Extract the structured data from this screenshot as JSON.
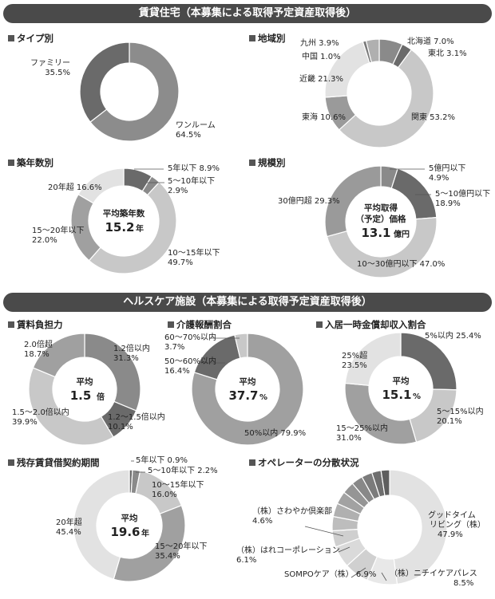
{
  "sections": {
    "residential_title": "賃貸住宅（本募集による取得予定資産取得後）",
    "healthcare_title": "ヘルスケア施設（本募集による取得予定資産取得後）"
  },
  "colors": {
    "dark": "#6a6a6a",
    "mid": "#a0a0a0",
    "light": "#c8c8c8",
    "pale": "#e2e2e2"
  },
  "chart_data": [
    {
      "id": "type",
      "type": "donut",
      "title": "タイプ別",
      "slices": [
        {
          "label": "ワンルーム",
          "value": "64.5%",
          "v": 64.5,
          "color": "#8c8c8c"
        },
        {
          "label": "ファミリー",
          "value": "35.5%",
          "v": 35.5,
          "color": "#6a6a6a"
        }
      ]
    },
    {
      "id": "region",
      "type": "donut",
      "title": "地域別",
      "slices": [
        {
          "label": "北海道",
          "value": "7.0%",
          "v": 7.0,
          "color": "#8a8a8a"
        },
        {
          "label": "東北",
          "value": "3.1%",
          "v": 3.1,
          "color": "#6a6a6a"
        },
        {
          "label": "関東",
          "value": "53.2%",
          "v": 53.2,
          "color": "#c8c8c8"
        },
        {
          "label": "東海",
          "value": "10.6%",
          "v": 10.6,
          "color": "#9a9a9a"
        },
        {
          "label": "近畿",
          "value": "21.3%",
          "v": 21.3,
          "color": "#e2e2e2"
        },
        {
          "label": "中国",
          "value": "1.0%",
          "v": 1.0,
          "color": "#7a7a7a"
        },
        {
          "label": "九州",
          "value": "3.9%",
          "v": 3.9,
          "color": "#b0b0b0"
        }
      ]
    },
    {
      "id": "age",
      "type": "donut",
      "title": "築年数別",
      "center": {
        "line1": "平均築年数",
        "value": "15.2",
        "unit": "年"
      },
      "slices": [
        {
          "label": "5年以下",
          "value": "8.9%",
          "v": 8.9,
          "color": "#6a6a6a"
        },
        {
          "label": "5～10年以下",
          "value": "2.9%",
          "v": 2.9,
          "color": "#8a8a8a"
        },
        {
          "label": "10～15年以下",
          "value": "49.7%",
          "v": 49.7,
          "color": "#c8c8c8"
        },
        {
          "label": "15～20年以下",
          "value": "22.0%",
          "v": 22.0,
          "color": "#a0a0a0"
        },
        {
          "label": "20年超",
          "value": "16.6%",
          "v": 16.6,
          "color": "#e2e2e2"
        }
      ]
    },
    {
      "id": "scale",
      "type": "donut",
      "title": "規模別",
      "center": {
        "line1": "平均取得",
        "line2": "（予定）価格",
        "value": "13.1",
        "unit": "億円"
      },
      "slices": [
        {
          "label": "5億円以下",
          "value": "4.9%",
          "v": 4.9,
          "color": "#8a8a8a"
        },
        {
          "label": "5～10億円以下",
          "value": "18.9%",
          "v": 18.9,
          "color": "#6a6a6a"
        },
        {
          "label": "10～30億円以下",
          "value": "47.0%",
          "v": 47.0,
          "color": "#c8c8c8"
        },
        {
          "label": "30億円超",
          "value": "29.3%",
          "v": 29.3,
          "color": "#9a9a9a"
        }
      ]
    },
    {
      "id": "rent",
      "type": "donut",
      "title": "賃料負担力",
      "center": {
        "line1": "平均",
        "value": "1.5",
        "unit": "倍"
      },
      "slices": [
        {
          "label": "1.2倍以内",
          "value": "31.3%",
          "v": 31.3,
          "color": "#8a8a8a"
        },
        {
          "label": "1.2～1.5倍以内",
          "value": "10.1%",
          "v": 10.1,
          "color": "#6a6a6a"
        },
        {
          "label": "1.5～2.0倍以内",
          "value": "39.9%",
          "v": 39.9,
          "color": "#c8c8c8"
        },
        {
          "label": "2.0倍超",
          "value": "18.7%",
          "v": 18.7,
          "color": "#a0a0a0"
        }
      ]
    },
    {
      "id": "care",
      "type": "donut",
      "title": "介護報酬割合",
      "center": {
        "line1": "平均",
        "value": "37.7",
        "unit": "%"
      },
      "slices": [
        {
          "label": "50%以内",
          "value": "79.9%",
          "v": 79.9,
          "color": "#a0a0a0"
        },
        {
          "label": "50～60%以内",
          "value": "16.4%",
          "v": 16.4,
          "color": "#6a6a6a"
        },
        {
          "label": "60～70%以内",
          "value": "3.7%",
          "v": 3.7,
          "color": "#c8c8c8"
        }
      ]
    },
    {
      "id": "upfront",
      "type": "donut",
      "title": "入居一時金償却収入割合",
      "center": {
        "line1": "平均",
        "value": "15.1",
        "unit": "%"
      },
      "slices": [
        {
          "label": "5%以内",
          "value": "25.4%",
          "v": 25.4,
          "color": "#6a6a6a"
        },
        {
          "label": "5～15%以内",
          "value": "20.1%",
          "v": 20.1,
          "color": "#c8c8c8"
        },
        {
          "label": "15～25%以内",
          "value": "31.0%",
          "v": 31.0,
          "color": "#a0a0a0"
        },
        {
          "label": "25%超",
          "value": "23.5%",
          "v": 23.5,
          "color": "#e2e2e2"
        }
      ]
    },
    {
      "id": "lease",
      "type": "donut",
      "title": "残存賃貸借契約期間",
      "center": {
        "line1": "平均",
        "value": "19.6",
        "unit": "年"
      },
      "slices": [
        {
          "label": "5年以下",
          "value": "0.9%",
          "v": 0.9,
          "color": "#6a6a6a"
        },
        {
          "label": "5～10年以下",
          "value": "2.2%",
          "v": 2.2,
          "color": "#8a8a8a"
        },
        {
          "label": "10～15年以下",
          "value": "16.0%",
          "v": 16.0,
          "color": "#c8c8c8"
        },
        {
          "label": "15～20年以下",
          "value": "35.4%",
          "v": 35.4,
          "color": "#a0a0a0"
        },
        {
          "label": "20年超",
          "value": "45.4%",
          "v": 45.4,
          "color": "#e2e2e2"
        }
      ]
    },
    {
      "id": "operator",
      "type": "donut",
      "title": "オペレーターの分散状況",
      "slices": [
        {
          "label": "グッドタイム\nリビング（株）",
          "value": "47.9%",
          "v": 47.9,
          "color": "#e2e2e2"
        },
        {
          "label": "（株）ニチイケアパレス",
          "value": "8.5%",
          "v": 8.5,
          "color": "#e8e8e8"
        },
        {
          "label": "SOMPOケア（株）",
          "value": "6.9%",
          "v": 6.9,
          "color": "#d0d0d0"
        },
        {
          "label": "（株）はれコーポレーション",
          "value": "6.1%",
          "v": 6.1,
          "color": "#dadada"
        },
        {
          "label": "（株）さわやか倶楽部",
          "value": "4.6%",
          "v": 4.6,
          "color": "#cfcfcf"
        },
        {
          "label": "",
          "value": "",
          "v": 4.0,
          "color": "#bdbdbd"
        },
        {
          "label": "",
          "value": "",
          "v": 3.8,
          "color": "#b0b0b0"
        },
        {
          "label": "",
          "value": "",
          "v": 3.6,
          "color": "#a2a2a2"
        },
        {
          "label": "",
          "value": "",
          "v": 3.4,
          "color": "#959595"
        },
        {
          "label": "",
          "value": "",
          "v": 3.2,
          "color": "#888888"
        },
        {
          "label": "",
          "value": "",
          "v": 3.0,
          "color": "#7b7b7b"
        },
        {
          "label": "",
          "value": "",
          "v": 2.6,
          "color": "#6e6e6e"
        },
        {
          "label": "",
          "value": "",
          "v": 2.4,
          "color": "#5e5e5e"
        }
      ]
    }
  ]
}
